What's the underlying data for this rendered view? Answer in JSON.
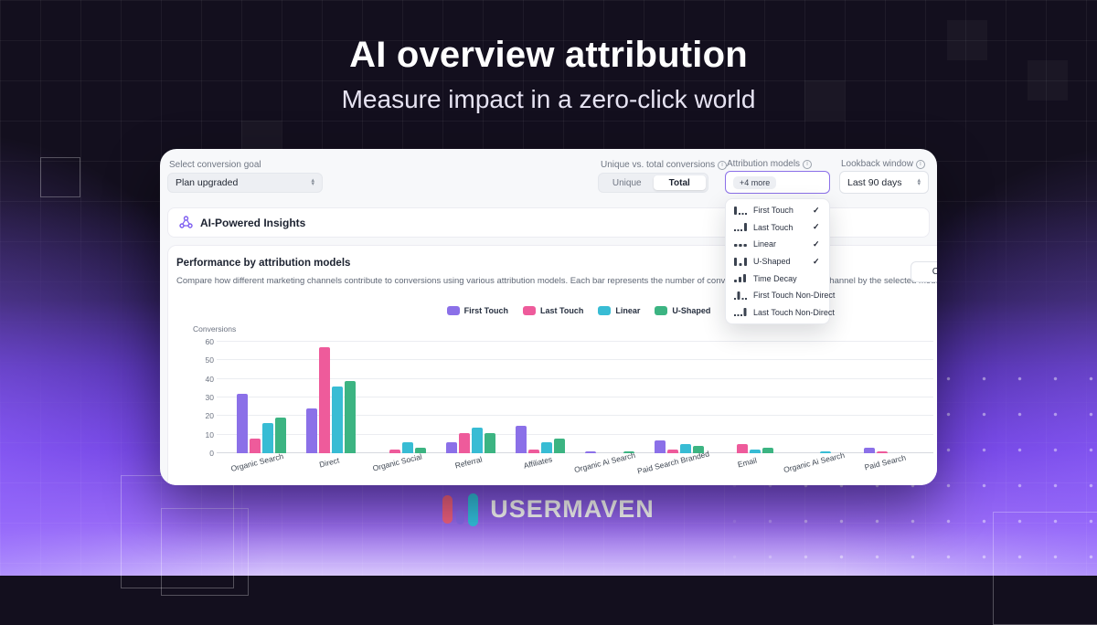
{
  "hero": {
    "title": "AI overview attribution",
    "subtitle": "Measure impact in a zero-click world"
  },
  "dashboard": {
    "conversion_goal": {
      "label": "Select conversion goal",
      "value": "Plan upgraded"
    },
    "unique_total": {
      "label": "Unique vs. total conversions",
      "options": [
        "Unique",
        "Total"
      ],
      "selected": "Total"
    },
    "attribution_models": {
      "label": "Attribution models",
      "chip": "+4 more"
    },
    "lookback": {
      "label": "Lookback window",
      "value": "Last 90 days"
    },
    "insights_bar": {
      "label": "AI-Powered Insights"
    },
    "section": {
      "title": "Performance by attribution models",
      "description": "Compare how different marketing channels contribute to conversions using various attribution models. Each bar represents the number of conversions attributed to each channel by the selected model.",
      "chart_button": "Chart"
    },
    "menu": {
      "items": [
        {
          "label": "First Touch",
          "check": "✓"
        },
        {
          "label": "Last Touch",
          "check": "✓"
        },
        {
          "label": "Linear",
          "check": "✓"
        },
        {
          "label": "U-Shaped",
          "check": "✓"
        },
        {
          "label": "Time Decay",
          "check": ""
        },
        {
          "label": "First Touch Non-Direct",
          "check": ""
        },
        {
          "label": "Last Touch Non-Direct",
          "check": ""
        }
      ]
    }
  },
  "chart_data": {
    "type": "bar",
    "title": "Performance by attribution models",
    "ylabel": "Conversions",
    "ylim": [
      0,
      60
    ],
    "yticks": [
      0,
      10,
      20,
      30,
      40,
      50,
      60
    ],
    "grid": true,
    "legend_position": "top",
    "categories": [
      "Organic Search",
      "Direct",
      "Organic Social",
      "Referral",
      "Affiliates",
      "Organic Ai Search",
      "Paid Search Branded",
      "Email",
      "Organic Ai Search",
      "Paid Search"
    ],
    "series": [
      {
        "name": "First Touch",
        "color": "#8B70E8",
        "values": [
          32,
          24,
          0,
          6,
          15,
          1,
          7,
          0,
          0,
          3
        ]
      },
      {
        "name": "Last Touch",
        "color": "#EE5B9B",
        "values": [
          8,
          57,
          2,
          11,
          2,
          0,
          2,
          5,
          0,
          1
        ]
      },
      {
        "name": "Linear",
        "color": "#38BCD4",
        "values": [
          16,
          36,
          6,
          14,
          6,
          0,
          5,
          2,
          1,
          0
        ]
      },
      {
        "name": "U-Shaped",
        "color": "#3CB482",
        "values": [
          19,
          39,
          3,
          11,
          8,
          1,
          4,
          3,
          0,
          0
        ]
      }
    ]
  },
  "footer": {
    "brand": "USERMAVEN",
    "logo_colors": {
      "pink": "#F56383",
      "purple": "#8B6CF0",
      "teal": "#35C6E4"
    }
  }
}
